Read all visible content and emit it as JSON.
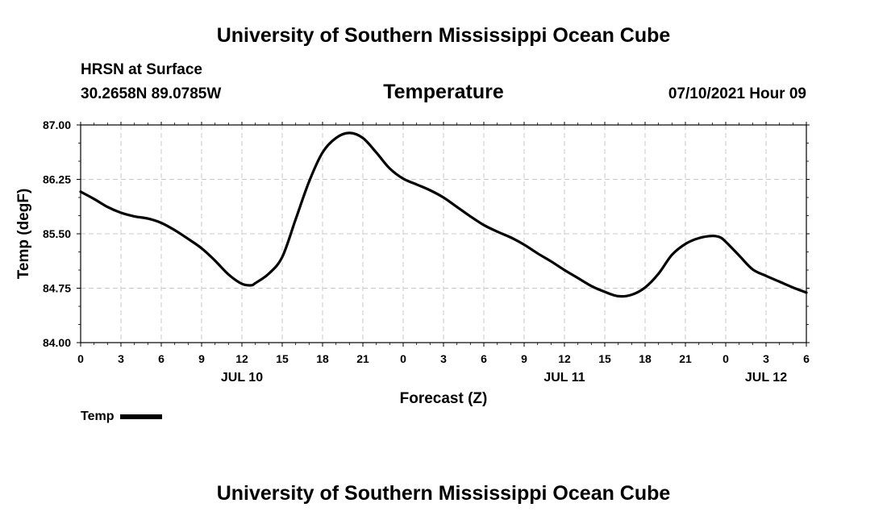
{
  "header": {
    "title_top": "University of Southern Mississippi Ocean Cube",
    "station": "HRSN at Surface",
    "coords": "30.2658N  89.0785W",
    "variable": "Temperature",
    "datetime": "07/10/2021 Hour 09"
  },
  "footer": {
    "title_bottom": "University of Southern Mississippi Ocean Cube"
  },
  "legend": {
    "label": "Temp",
    "line_color": "#000000"
  },
  "chart_data": {
    "type": "line",
    "title": "Temperature",
    "xlabel": "Forecast (Z)",
    "ylabel": "Temp (degF)",
    "ylim": [
      84.0,
      87.0
    ],
    "xlim": [
      0,
      54
    ],
    "y_ticks": [
      "84.00",
      "84.75",
      "85.50",
      "86.25",
      "87.00"
    ],
    "y_tick_values": [
      84.0,
      84.75,
      85.5,
      86.25,
      87.0
    ],
    "x_ticks": [
      {
        "hour": 0,
        "label": "0"
      },
      {
        "hour": 3,
        "label": "3"
      },
      {
        "hour": 6,
        "label": "6"
      },
      {
        "hour": 9,
        "label": "9"
      },
      {
        "hour": 12,
        "label": "12"
      },
      {
        "hour": 15,
        "label": "15"
      },
      {
        "hour": 18,
        "label": "18"
      },
      {
        "hour": 21,
        "label": "21"
      },
      {
        "hour": 24,
        "label": "0"
      },
      {
        "hour": 27,
        "label": "3"
      },
      {
        "hour": 30,
        "label": "6"
      },
      {
        "hour": 33,
        "label": "9"
      },
      {
        "hour": 36,
        "label": "12"
      },
      {
        "hour": 39,
        "label": "15"
      },
      {
        "hour": 42,
        "label": "18"
      },
      {
        "hour": 45,
        "label": "21"
      },
      {
        "hour": 48,
        "label": "0"
      },
      {
        "hour": 51,
        "label": "3"
      },
      {
        "hour": 54,
        "label": "6"
      }
    ],
    "date_labels": [
      {
        "hour": 12,
        "label": "JUL 10"
      },
      {
        "hour": 36,
        "label": "JUL 11"
      },
      {
        "hour": 51,
        "label": "JUL 12"
      }
    ],
    "grid": true,
    "series": [
      {
        "name": "Temp",
        "color": "#000000",
        "x": [
          0,
          1,
          2,
          3,
          4,
          5,
          6,
          7,
          8,
          9,
          10,
          11,
          12,
          12.7,
          13,
          14,
          15,
          16,
          17,
          18,
          19,
          20,
          21,
          22,
          23,
          24,
          25,
          26,
          27,
          28,
          29,
          30,
          31,
          32,
          33,
          34,
          35,
          36,
          37,
          38,
          39,
          40,
          41,
          42,
          43,
          44,
          45,
          46,
          47,
          47.6,
          48,
          49,
          50,
          51,
          52,
          53,
          54
        ],
        "y": [
          86.08,
          85.98,
          85.87,
          85.79,
          85.74,
          85.71,
          85.65,
          85.55,
          85.43,
          85.3,
          85.13,
          84.94,
          84.81,
          84.79,
          84.82,
          84.95,
          85.18,
          85.7,
          86.22,
          86.62,
          86.82,
          86.89,
          86.82,
          86.62,
          86.4,
          86.26,
          86.18,
          86.1,
          86.0,
          85.87,
          85.74,
          85.62,
          85.53,
          85.45,
          85.35,
          85.23,
          85.12,
          85.0,
          84.89,
          84.78,
          84.7,
          84.64,
          84.66,
          84.76,
          84.95,
          85.21,
          85.36,
          85.44,
          85.47,
          85.45,
          85.39,
          85.2,
          85.01,
          84.92,
          84.84,
          84.76,
          84.69
        ]
      }
    ]
  }
}
